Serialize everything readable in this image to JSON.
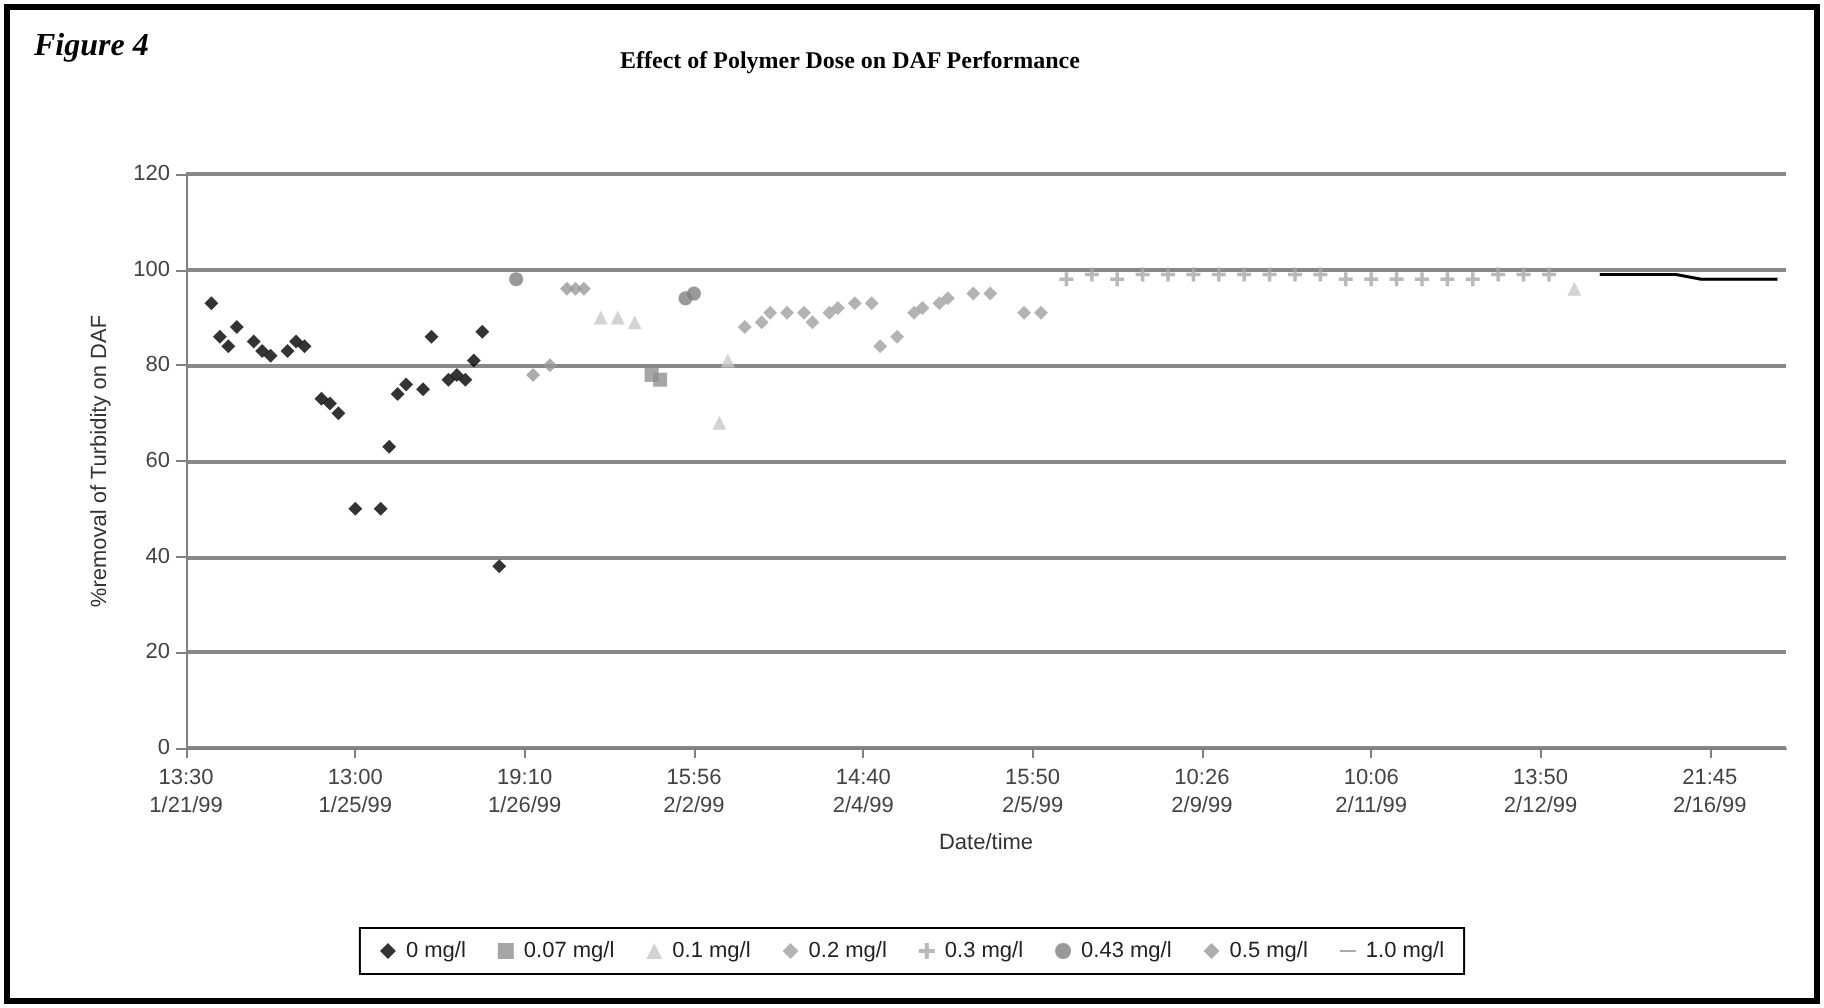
{
  "chart_data": {
    "type": "scatter",
    "title": "Effect of Polymer Dose on DAF Performance",
    "annotations": [
      "Figure 4"
    ],
    "xlabel": "Date/time",
    "ylabel": "%removal of Turbidity on DAF",
    "categories": [
      "13:30\n1/21/99",
      null,
      null,
      null,
      null,
      null,
      null,
      null,
      null,
      null,
      null,
      null,
      null,
      null,
      null,
      null,
      null,
      null,
      null,
      null,
      "13:00\n1/25/99",
      null,
      null,
      null,
      null,
      null,
      null,
      null,
      null,
      null,
      null,
      null,
      null,
      null,
      null,
      null,
      null,
      null,
      null,
      null,
      "19:10\n1/26/99",
      null,
      null,
      null,
      null,
      null,
      null,
      null,
      null,
      null,
      null,
      null,
      null,
      null,
      null,
      null,
      null,
      null,
      null,
      null,
      "15:56\n2/2/99",
      null,
      null,
      null,
      null,
      null,
      null,
      null,
      null,
      null,
      null,
      null,
      null,
      null,
      null,
      null,
      null,
      null,
      null,
      null,
      "14:40\n2/4/99",
      null,
      null,
      null,
      null,
      null,
      null,
      null,
      null,
      null,
      null,
      null,
      null,
      null,
      null,
      null,
      null,
      null,
      null,
      null,
      "15:50\n2/5/99",
      null,
      null,
      null,
      null,
      null,
      null,
      null,
      null,
      null,
      null,
      null,
      null,
      null,
      null,
      null,
      null,
      null,
      null,
      null,
      "10:26\n2/9/99",
      null,
      null,
      null,
      null,
      null,
      null,
      null,
      null,
      null,
      null,
      null,
      null,
      null,
      null,
      null,
      null,
      null,
      null,
      null,
      "10:06\n2/11/99",
      null,
      null,
      null,
      null,
      null,
      null,
      null,
      null,
      null,
      null,
      null,
      null,
      null,
      null,
      null,
      null,
      null,
      null,
      null,
      "13:50\n2/12/99",
      null,
      null,
      null,
      null,
      null,
      null,
      null,
      null,
      null,
      null,
      null,
      null,
      null,
      null,
      null,
      null,
      null,
      null,
      null,
      "21:45\n2/16/99",
      null,
      null,
      null,
      null,
      null,
      null,
      null,
      null,
      null
    ],
    "ylim": [
      0,
      120
    ],
    "yticks": [
      0,
      20,
      40,
      60,
      80,
      100,
      120
    ],
    "grid": "y",
    "legend": "bottom",
    "series": [
      {
        "name": "0 mg/l",
        "color": "#000000",
        "marker": "diamond",
        "values": [
          null,
          null,
          null,
          93,
          86,
          84,
          88,
          null,
          85,
          83,
          82,
          null,
          83,
          85,
          84,
          null,
          73,
          72,
          70,
          null,
          50,
          null,
          null,
          50,
          63,
          74,
          76,
          null,
          75,
          86,
          null,
          77,
          78,
          77,
          81,
          87,
          null,
          38,
          null,
          null,
          null,
          null,
          null,
          null,
          null,
          null,
          null,
          null,
          null,
          null,
          null,
          null,
          null,
          null,
          null,
          null,
          null,
          null,
          null,
          null,
          null,
          null,
          null,
          null,
          null,
          null,
          null,
          null,
          null,
          null,
          null,
          null,
          null,
          null,
          null,
          null,
          null,
          null,
          null,
          null,
          null,
          null,
          null,
          null,
          null,
          null,
          null,
          null,
          null,
          null,
          null,
          null,
          null,
          null,
          null,
          null,
          null,
          null,
          null,
          null,
          null,
          null,
          null,
          null,
          null,
          null,
          null,
          null,
          null,
          null,
          null,
          null,
          null,
          null,
          null,
          null,
          null,
          null,
          null,
          null,
          null,
          null,
          null,
          null,
          null,
          null,
          null,
          null,
          null,
          null,
          null,
          null,
          null,
          null,
          null,
          null,
          null,
          null,
          null,
          null,
          null,
          null,
          null,
          null,
          null,
          null,
          null,
          null,
          null,
          null,
          null,
          null,
          null,
          null,
          null,
          null,
          null,
          null,
          null,
          null,
          null,
          null,
          null,
          null,
          null,
          null,
          null,
          null,
          null,
          null,
          null,
          null,
          null,
          null,
          null,
          null,
          null,
          null,
          null,
          null,
          null,
          null,
          null,
          null,
          null,
          null,
          null,
          null,
          null,
          null
        ]
      },
      {
        "name": "0.07 mg/l",
        "color": "#909090",
        "marker": "square",
        "values": [
          null,
          null,
          null,
          null,
          null,
          null,
          null,
          null,
          null,
          null,
          null,
          null,
          null,
          null,
          null,
          null,
          null,
          null,
          null,
          null,
          null,
          null,
          null,
          null,
          null,
          null,
          null,
          null,
          null,
          null,
          null,
          null,
          null,
          null,
          null,
          null,
          null,
          null,
          null,
          null,
          null,
          null,
          null,
          null,
          null,
          null,
          null,
          null,
          null,
          null,
          null,
          null,
          null,
          null,
          null,
          78,
          77,
          null,
          null,
          null,
          null,
          null,
          null,
          null,
          null,
          null,
          null,
          null,
          null,
          null,
          null,
          null,
          null,
          null,
          null,
          null,
          null,
          null,
          null,
          null,
          null,
          null,
          null,
          null,
          null,
          null,
          null,
          null,
          null,
          null,
          null,
          null,
          null,
          null,
          null,
          null,
          null,
          null,
          null,
          null,
          null,
          null,
          null,
          null,
          null,
          null,
          null,
          null,
          null,
          null,
          null,
          null,
          null,
          null,
          null,
          null,
          null,
          null,
          null,
          null,
          null,
          null,
          null,
          null,
          null,
          null,
          null,
          null,
          null,
          null,
          null,
          null,
          null,
          null,
          null,
          null,
          null,
          null,
          null,
          null,
          null,
          null,
          null,
          null,
          null,
          null,
          null,
          null,
          null,
          null,
          null,
          null,
          null,
          null,
          null,
          null,
          null,
          null,
          null,
          null,
          null,
          null,
          null,
          null,
          null,
          null,
          null,
          null,
          null,
          null,
          null,
          null,
          null,
          null,
          null,
          null,
          null,
          null,
          null,
          null,
          null,
          null,
          null,
          null,
          null,
          null,
          null,
          null,
          null,
          null
        ]
      },
      {
        "name": "0.1 mg/l",
        "color": "#c8c8c8",
        "marker": "triangle",
        "values": [
          null,
          null,
          null,
          null,
          null,
          null,
          null,
          null,
          null,
          null,
          null,
          null,
          null,
          null,
          null,
          null,
          null,
          null,
          null,
          null,
          null,
          null,
          null,
          null,
          null,
          null,
          null,
          null,
          null,
          null,
          null,
          null,
          null,
          null,
          null,
          null,
          null,
          null,
          null,
          null,
          null,
          null,
          null,
          null,
          null,
          null,
          null,
          null,
          null,
          90,
          null,
          90,
          null,
          89,
          null,
          null,
          null,
          null,
          null,
          null,
          null,
          null,
          null,
          68,
          81,
          null,
          null,
          null,
          null,
          null,
          null,
          null,
          null,
          null,
          null,
          null,
          null,
          null,
          null,
          null,
          null,
          null,
          null,
          null,
          null,
          null,
          null,
          null,
          null,
          null,
          null,
          null,
          null,
          null,
          null,
          null,
          null,
          null,
          null,
          null,
          null,
          null,
          null,
          null,
          null,
          null,
          null,
          null,
          null,
          null,
          null,
          null,
          null,
          null,
          null,
          null,
          null,
          null,
          null,
          null,
          null,
          null,
          null,
          null,
          null,
          null,
          null,
          null,
          null,
          null,
          null,
          null,
          null,
          null,
          null,
          null,
          null,
          null,
          null,
          null,
          null,
          null,
          null,
          null,
          null,
          null,
          null,
          null,
          null,
          null,
          null,
          null,
          null,
          null,
          null,
          null,
          null,
          null,
          null,
          null,
          null,
          null,
          null,
          null,
          96,
          null,
          null,
          null,
          null,
          null,
          null,
          null,
          null,
          null,
          null,
          null,
          null,
          null,
          null,
          null,
          null,
          null,
          null,
          null,
          null,
          null,
          null,
          null,
          null,
          null
        ]
      },
      {
        "name": "0.2 mg/l",
        "color": "#a0a0a0",
        "marker": "diamond",
        "values": [
          null,
          null,
          null,
          null,
          null,
          null,
          null,
          null,
          null,
          null,
          null,
          null,
          null,
          null,
          null,
          null,
          null,
          null,
          null,
          null,
          null,
          null,
          null,
          null,
          null,
          null,
          null,
          null,
          null,
          null,
          null,
          null,
          null,
          null,
          null,
          null,
          null,
          null,
          null,
          null,
          null,
          null,
          null,
          null,
          null,
          null,
          null,
          null,
          null,
          null,
          null,
          null,
          null,
          null,
          null,
          null,
          null,
          null,
          null,
          null,
          null,
          null,
          null,
          null,
          null,
          null,
          88,
          null,
          89,
          91,
          null,
          91,
          null,
          91,
          89,
          null,
          91,
          92,
          null,
          93,
          null,
          93,
          84,
          null,
          86,
          null,
          91,
          92,
          null,
          93,
          94,
          null,
          null,
          95,
          null,
          95,
          null,
          null,
          null,
          91,
          null,
          91,
          null,
          null,
          null,
          null,
          null,
          null,
          null,
          null,
          null,
          null,
          null,
          null,
          null,
          null,
          null,
          null,
          null,
          null,
          null,
          null,
          null,
          null,
          null,
          null,
          null,
          null,
          null,
          null,
          null,
          null,
          null,
          null,
          null,
          null,
          null,
          null,
          null,
          null,
          null,
          null,
          null,
          null,
          null,
          null,
          null,
          null,
          null,
          null,
          null,
          null,
          null,
          null,
          null,
          null,
          null,
          null,
          null,
          null,
          null,
          null,
          null,
          null,
          null,
          null,
          null,
          null,
          null,
          null,
          null,
          null,
          null,
          null,
          null,
          null,
          null,
          null,
          null,
          null,
          null,
          null,
          null,
          null,
          null,
          null,
          null,
          null,
          null,
          null
        ]
      },
      {
        "name": "0.3 mg/l",
        "color": "#a8a8a8",
        "marker": "cross",
        "values": [
          null,
          null,
          null,
          null,
          null,
          null,
          null,
          null,
          null,
          null,
          null,
          null,
          null,
          null,
          null,
          null,
          null,
          null,
          null,
          null,
          null,
          null,
          null,
          null,
          null,
          null,
          null,
          null,
          null,
          null,
          null,
          null,
          null,
          null,
          null,
          null,
          null,
          null,
          null,
          null,
          null,
          null,
          null,
          null,
          null,
          null,
          null,
          null,
          null,
          null,
          null,
          null,
          null,
          null,
          null,
          null,
          null,
          null,
          null,
          null,
          null,
          null,
          null,
          null,
          null,
          null,
          null,
          null,
          null,
          null,
          null,
          null,
          null,
          null,
          null,
          null,
          null,
          null,
          null,
          null,
          null,
          null,
          null,
          null,
          null,
          null,
          null,
          null,
          null,
          null,
          null,
          null,
          null,
          null,
          null,
          null,
          null,
          null,
          null,
          null,
          null,
          null,
          null,
          null,
          98,
          null,
          null,
          99,
          null,
          null,
          98,
          null,
          null,
          99,
          null,
          null,
          99,
          null,
          null,
          99,
          null,
          null,
          99,
          null,
          null,
          99,
          null,
          null,
          99,
          null,
          null,
          99,
          null,
          null,
          99,
          null,
          null,
          98,
          null,
          null,
          98,
          null,
          null,
          98,
          null,
          null,
          98,
          null,
          null,
          98,
          null,
          null,
          98,
          null,
          null,
          99,
          null,
          null,
          99,
          null,
          null,
          99,
          null,
          null,
          null,
          null,
          null,
          null,
          null,
          null,
          null,
          null,
          null,
          null,
          null,
          null,
          null,
          null,
          null,
          null,
          null,
          null,
          null,
          null,
          null,
          null,
          null,
          null,
          null,
          null
        ]
      },
      {
        "name": "0.43 mg/l",
        "color": "#808080",
        "marker": "circle",
        "values": [
          null,
          null,
          null,
          null,
          null,
          null,
          null,
          null,
          null,
          null,
          null,
          null,
          null,
          null,
          null,
          null,
          null,
          null,
          null,
          null,
          null,
          null,
          null,
          null,
          null,
          null,
          null,
          null,
          null,
          null,
          null,
          null,
          null,
          null,
          null,
          null,
          null,
          null,
          null,
          98,
          null,
          null,
          null,
          null,
          null,
          null,
          null,
          null,
          null,
          null,
          null,
          null,
          null,
          null,
          null,
          null,
          null,
          null,
          null,
          94,
          95,
          null,
          null,
          null,
          null,
          null,
          null,
          null,
          null,
          null,
          null,
          null,
          null,
          null,
          null,
          null,
          null,
          null,
          null,
          null,
          null,
          null,
          null,
          null,
          null,
          null,
          null,
          null,
          null,
          null,
          null,
          null,
          null,
          null,
          null,
          null,
          null,
          null,
          null,
          null,
          null,
          null,
          null,
          null,
          null,
          null,
          null,
          null,
          null,
          null,
          null,
          null,
          null,
          null,
          null,
          null,
          null,
          null,
          null,
          null,
          null,
          null,
          null,
          null,
          null,
          null,
          null,
          null,
          null,
          null,
          null,
          null,
          null,
          null,
          null,
          null,
          null,
          null,
          null,
          null,
          null,
          null,
          null,
          null,
          null,
          null,
          null,
          null,
          null,
          null,
          null,
          null,
          null,
          null,
          null,
          null,
          null,
          null,
          null,
          null,
          null,
          null,
          null,
          null,
          null,
          null,
          null,
          null,
          null,
          null,
          null,
          null,
          null,
          null,
          null,
          null,
          null,
          null,
          null,
          null,
          null,
          null,
          null,
          null,
          null,
          null,
          null,
          null,
          null,
          null
        ]
      },
      {
        "name": "0.5 mg/l",
        "color": "#989898",
        "marker": "diamond",
        "values": [
          null,
          null,
          null,
          null,
          null,
          null,
          null,
          null,
          null,
          null,
          null,
          null,
          null,
          null,
          null,
          null,
          null,
          null,
          null,
          null,
          null,
          null,
          null,
          null,
          null,
          null,
          null,
          null,
          null,
          null,
          null,
          null,
          null,
          null,
          null,
          null,
          null,
          null,
          null,
          null,
          null,
          78,
          null,
          80,
          null,
          96,
          96,
          96,
          null,
          null,
          null,
          null,
          null,
          null,
          null,
          null,
          null,
          null,
          null,
          null,
          null,
          null,
          null,
          null,
          null,
          null,
          null,
          null,
          null,
          null,
          null,
          null,
          null,
          null,
          null,
          null,
          null,
          null,
          null,
          null,
          null,
          null,
          null,
          null,
          null,
          null,
          null,
          null,
          null,
          null,
          null,
          null,
          null,
          null,
          null,
          null,
          null,
          null,
          null,
          null,
          null,
          null,
          null,
          null,
          null,
          null,
          null,
          null,
          null,
          null,
          null,
          null,
          null,
          null,
          null,
          null,
          null,
          null,
          null,
          null,
          null,
          null,
          null,
          null,
          null,
          null,
          null,
          null,
          null,
          null,
          null,
          null,
          null,
          null,
          null,
          null,
          null,
          null,
          null,
          null,
          null,
          null,
          null,
          null,
          null,
          null,
          null,
          null,
          null,
          null,
          null,
          null,
          null,
          null,
          null,
          null,
          null,
          null,
          null,
          null,
          null,
          null,
          null,
          null,
          null,
          null,
          null,
          null,
          null,
          null,
          null,
          null,
          null,
          null,
          null,
          null,
          null,
          null,
          null,
          null,
          null,
          null,
          null,
          null,
          null,
          null,
          null,
          null,
          null,
          null
        ]
      },
      {
        "name": "1.0 mg/l",
        "color": "#000000",
        "type": "line",
        "marker": "none",
        "values": [
          null,
          null,
          null,
          null,
          null,
          null,
          null,
          null,
          null,
          null,
          null,
          null,
          null,
          null,
          null,
          null,
          null,
          null,
          null,
          null,
          null,
          null,
          null,
          null,
          null,
          null,
          null,
          null,
          null,
          null,
          null,
          null,
          null,
          null,
          null,
          null,
          null,
          null,
          null,
          null,
          null,
          null,
          null,
          null,
          null,
          null,
          null,
          null,
          null,
          null,
          null,
          null,
          null,
          null,
          null,
          null,
          null,
          null,
          null,
          null,
          null,
          null,
          null,
          null,
          null,
          null,
          null,
          null,
          null,
          null,
          null,
          null,
          null,
          null,
          null,
          null,
          null,
          null,
          null,
          null,
          null,
          null,
          null,
          null,
          null,
          null,
          null,
          null,
          null,
          null,
          null,
          null,
          null,
          null,
          null,
          null,
          null,
          null,
          null,
          null,
          null,
          null,
          null,
          null,
          null,
          null,
          null,
          null,
          null,
          null,
          null,
          null,
          null,
          null,
          null,
          null,
          null,
          null,
          null,
          null,
          null,
          null,
          null,
          null,
          null,
          null,
          null,
          null,
          null,
          null,
          null,
          null,
          null,
          null,
          null,
          null,
          null,
          null,
          null,
          null,
          null,
          null,
          null,
          null,
          null,
          null,
          null,
          null,
          null,
          null,
          null,
          null,
          null,
          null,
          null,
          null,
          null,
          null,
          null,
          null,
          null,
          null,
          null,
          null,
          null,
          null,
          null,
          99,
          null,
          null,
          99,
          null,
          null,
          99,
          null,
          null,
          99,
          null,
          null,
          98,
          null,
          null,
          98,
          null,
          null,
          98,
          null,
          null,
          98,
          null
        ]
      }
    ]
  }
}
